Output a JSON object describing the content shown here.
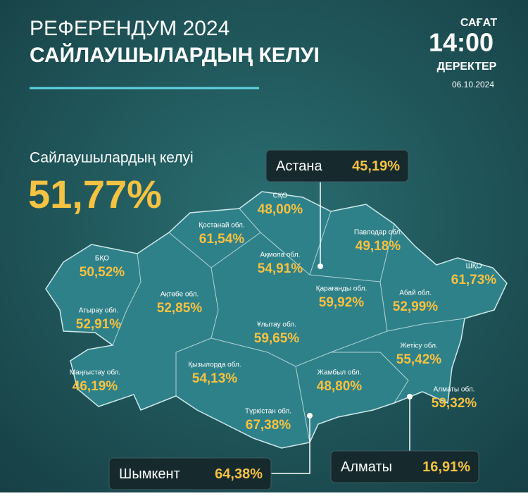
{
  "header": {
    "title": "РЕФЕРЕНДУМ 2024",
    "subtitle": "САЙЛАУШЫЛАРДЫҢ КЕЛУІ",
    "time_label": "САҒАТ",
    "time": "14:00",
    "data_label": "ДЕРЕКТЕР",
    "date": "06.10.2024"
  },
  "total": {
    "label": "Сайлаушылардың келуі",
    "value": "51,77%"
  },
  "cities": [
    {
      "label": "Астана",
      "value": "45,19%"
    },
    {
      "label": "Шымкент",
      "value": "64,38%"
    },
    {
      "label": "Алматы",
      "value": "16,91%"
    }
  ],
  "regions": [
    {
      "label": "СҚО",
      "value": "48,00%"
    },
    {
      "label": "Қостанай обл.",
      "value": "61,54%"
    },
    {
      "label": "Павлодар обл.",
      "value": "49,18%"
    },
    {
      "label": "Ақмола обл.",
      "value": "54,91%"
    },
    {
      "label": "БҚО",
      "value": "50,52%"
    },
    {
      "label": "ШҚО",
      "value": "61,73%"
    },
    {
      "label": "Ақтөбе обл.",
      "value": "52,85%"
    },
    {
      "label": "Қарағанды обл.",
      "value": "59,92%"
    },
    {
      "label": "Абай обл.",
      "value": "52,99%"
    },
    {
      "label": "Атырау обл.",
      "value": "52,91%"
    },
    {
      "label": "Ұлытау обл.",
      "value": "59,65%"
    },
    {
      "label": "Жетісу обл.",
      "value": "55,42%"
    },
    {
      "label": "Маңғыстау обл.",
      "value": "46,19%"
    },
    {
      "label": "Қызылорда обл.",
      "value": "54,13%"
    },
    {
      "label": "Жамбыл обл.",
      "value": "48,80%"
    },
    {
      "label": "Алматы обл.",
      "value": "59,32%"
    },
    {
      "label": "Түркістан обл.",
      "value": "67,38%"
    }
  ]
}
